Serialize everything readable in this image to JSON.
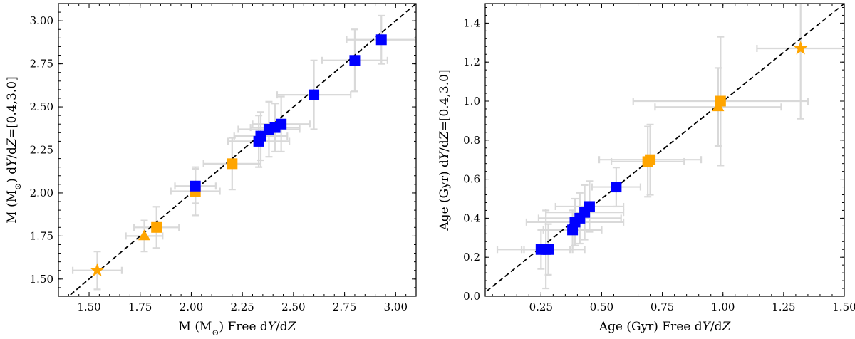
{
  "chart_data": [
    {
      "type": "scatter",
      "xlabel": "M (M⊙) Free dY/dZ",
      "ylabel": "M (M⊙) dY/dZ=[0.4,3.0]",
      "xlim": [
        1.35,
        3.1
      ],
      "ylim": [
        1.4,
        3.1
      ],
      "xticks": [
        1.5,
        1.75,
        2.0,
        2.25,
        2.5,
        2.75,
        3.0
      ],
      "xtick_labels": [
        "1.50",
        "1.75",
        "2.00",
        "2.25",
        "2.50",
        "2.75",
        "3.00"
      ],
      "yticks": [
        1.5,
        1.75,
        2.0,
        2.25,
        2.5,
        2.75,
        3.0
      ],
      "ytick_labels": [
        "1.50",
        "1.75",
        "2.00",
        "2.25",
        "2.50",
        "2.75",
        "3.00"
      ],
      "reference_line": "y = x (dashed)",
      "points": [
        {
          "x": 1.54,
          "y": 1.55,
          "xerr": 0.12,
          "yerr": 0.11,
          "marker": "star",
          "color": "#FFA500"
        },
        {
          "x": 1.77,
          "y": 1.75,
          "xerr": 0.09,
          "yerr": 0.09,
          "marker": "triangle",
          "color": "#FFA500"
        },
        {
          "x": 1.83,
          "y": 1.8,
          "xerr": 0.11,
          "yerr": 0.12,
          "marker": "square",
          "color": "#FFA500"
        },
        {
          "x": 2.02,
          "y": 2.01,
          "xerr": 0.12,
          "yerr": 0.14,
          "marker": "square",
          "color": "#FFA500"
        },
        {
          "x": 2.2,
          "y": 2.17,
          "xerr": 0.14,
          "yerr": 0.15,
          "marker": "square",
          "color": "#FFA500"
        },
        {
          "x": 2.02,
          "y": 2.04,
          "xerr": 0.1,
          "yerr": 0.1,
          "marker": "square",
          "color": "#0000FF"
        },
        {
          "x": 2.33,
          "y": 2.3,
          "xerr": 0.15,
          "yerr": 0.15,
          "marker": "square",
          "color": "#0000FF"
        },
        {
          "x": 2.34,
          "y": 2.33,
          "xerr": 0.13,
          "yerr": 0.14,
          "marker": "square",
          "color": "#0000FF"
        },
        {
          "x": 2.38,
          "y": 2.37,
          "xerr": 0.15,
          "yerr": 0.16,
          "marker": "square",
          "color": "#0000FF"
        },
        {
          "x": 2.41,
          "y": 2.38,
          "xerr": 0.12,
          "yerr": 0.14,
          "marker": "square",
          "color": "#0000FF"
        },
        {
          "x": 2.44,
          "y": 2.4,
          "xerr": 0.14,
          "yerr": 0.16,
          "marker": "square",
          "color": "#0000FF"
        },
        {
          "x": 2.6,
          "y": 2.57,
          "xerr": 0.18,
          "yerr": 0.2,
          "marker": "square",
          "color": "#0000FF"
        },
        {
          "x": 2.8,
          "y": 2.77,
          "xerr": 0.16,
          "yerr": 0.18,
          "marker": "square",
          "color": "#0000FF"
        },
        {
          "x": 2.93,
          "y": 2.89,
          "xerr": 0.17,
          "yerr": 0.14,
          "marker": "square",
          "color": "#0000FF"
        }
      ]
    },
    {
      "type": "scatter",
      "xlabel": "Age (Gyr) Free dY/dZ",
      "ylabel": "Age (Gyr) dY/dZ=[0.4,3.0]",
      "xlim": [
        0.02,
        1.5
      ],
      "ylim": [
        0.0,
        1.5
      ],
      "xticks": [
        0.25,
        0.5,
        0.75,
        1.0,
        1.25,
        1.5
      ],
      "xtick_labels": [
        "0.25",
        "0.50",
        "0.75",
        "1.00",
        "1.25",
        "1.50"
      ],
      "yticks": [
        0.0,
        0.2,
        0.4,
        0.6,
        0.8,
        1.0,
        1.2,
        1.4
      ],
      "ytick_labels": [
        "0.0",
        "0.2",
        "0.4",
        "0.6",
        "0.8",
        "1.0",
        "1.2",
        "1.4"
      ],
      "reference_line": "y = x (dashed)",
      "points": [
        {
          "x": 1.32,
          "y": 1.27,
          "xerr": 0.18,
          "yerr": 0.36,
          "marker": "star",
          "color": "#FFA500"
        },
        {
          "x": 0.98,
          "y": 0.97,
          "xerr": 0.26,
          "yerr": 0.2,
          "marker": "triangle",
          "color": "#FFA500"
        },
        {
          "x": 0.99,
          "y": 1.0,
          "xerr": 0.36,
          "yerr": 0.33,
          "marker": "square",
          "color": "#FFA500"
        },
        {
          "x": 0.69,
          "y": 0.69,
          "xerr": 0.15,
          "yerr": 0.18,
          "marker": "square",
          "color": "#FFA500"
        },
        {
          "x": 0.7,
          "y": 0.7,
          "xerr": 0.21,
          "yerr": 0.18,
          "marker": "square",
          "color": "#FFA500"
        },
        {
          "x": 0.56,
          "y": 0.56,
          "xerr": 0.1,
          "yerr": 0.1,
          "marker": "square",
          "color": "#0000FF"
        },
        {
          "x": 0.45,
          "y": 0.46,
          "xerr": 0.14,
          "yerr": 0.13,
          "marker": "square",
          "color": "#0000FF"
        },
        {
          "x": 0.43,
          "y": 0.43,
          "xerr": 0.16,
          "yerr": 0.14,
          "marker": "square",
          "color": "#0000FF"
        },
        {
          "x": 0.41,
          "y": 0.4,
          "xerr": 0.17,
          "yerr": 0.13,
          "marker": "square",
          "color": "#0000FF"
        },
        {
          "x": 0.39,
          "y": 0.38,
          "xerr": 0.2,
          "yerr": 0.12,
          "marker": "square",
          "color": "#0000FF"
        },
        {
          "x": 0.38,
          "y": 0.34,
          "xerr": 0.12,
          "yerr": 0.1,
          "marker": "square",
          "color": "#0000FF"
        },
        {
          "x": 0.25,
          "y": 0.24,
          "xerr": 0.18,
          "yerr": 0.1,
          "marker": "square",
          "color": "#0000FF"
        },
        {
          "x": 0.27,
          "y": 0.24,
          "xerr": 0.1,
          "yerr": 0.2,
          "marker": "square",
          "color": "#0000FF"
        },
        {
          "x": 0.28,
          "y": 0.24,
          "xerr": 0.1,
          "yerr": 0.13,
          "marker": "square",
          "color": "#0000FF"
        }
      ]
    }
  ]
}
